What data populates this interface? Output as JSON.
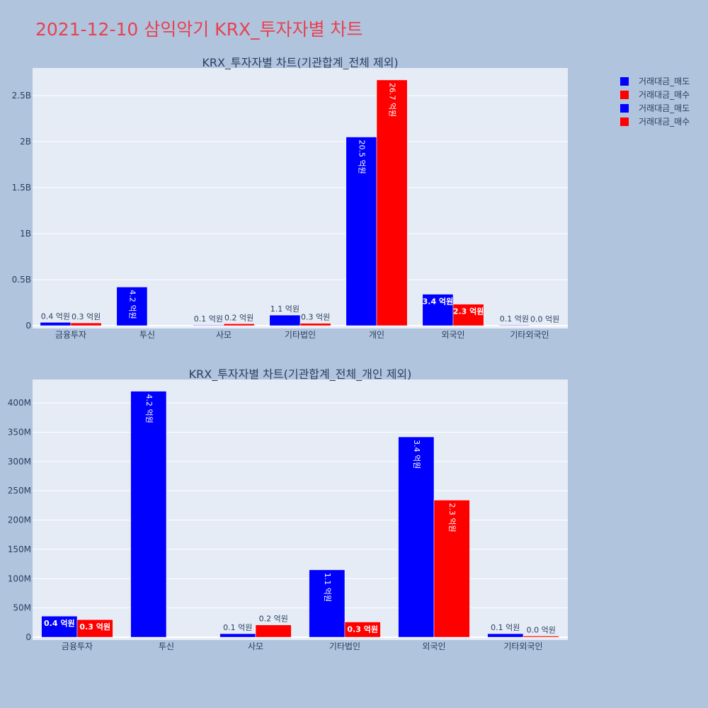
{
  "page_title": "2021-12-10 삼익악기 KRX_투자자별 차트",
  "colors": {
    "sell": "#0000ff",
    "buy": "#ff0000",
    "plot_bg": "#e5ecf6",
    "page_bg": "#b0c4de",
    "title": "#e8414f"
  },
  "legend": [
    {
      "label": "거래대금_매도",
      "color": "#0000ff"
    },
    {
      "label": "거래대금_매수",
      "color": "#ff0000"
    },
    {
      "label": "거래대금_매도",
      "color": "#0000ff"
    },
    {
      "label": "거래대금_매수",
      "color": "#ff0000"
    }
  ],
  "chart_data": [
    {
      "type": "bar",
      "title": "KRX_투자자별 차트(기관합계_전체 제외)",
      "categories": [
        "금융투자",
        "투신",
        "사모",
        "기타법인",
        "개인",
        "외국인",
        "기타외국인"
      ],
      "series": [
        {
          "name": "거래대금_매도",
          "color": "#0000ff",
          "values": [
            36000000,
            420000000,
            6000000,
            115000000,
            2050000000,
            342000000,
            6000000
          ],
          "labels": [
            "0.4 억원",
            "4.2 억원",
            "0.1 억원",
            "1.1 억원",
            "20.5 억원",
            "3.4 억원",
            "0.1 억원"
          ]
        },
        {
          "name": "거래대금_매수",
          "color": "#ff0000",
          "values": [
            30000000,
            0,
            21000000,
            26000000,
            2670000000,
            234000000,
            2000000
          ],
          "labels": [
            "0.3 억원",
            "",
            "0.2 억원",
            "0.3 억원",
            "26.7 억원",
            "2.3 억원",
            "0.0 억원"
          ]
        }
      ],
      "ylim": [
        0,
        2800000000
      ],
      "yticks": [
        0,
        500000000,
        1000000000,
        1500000000,
        2000000000,
        2500000000
      ],
      "ytick_labels": [
        "0",
        "0.5B",
        "1B",
        "1.5B",
        "2B",
        "2.5B"
      ],
      "grid": true
    },
    {
      "type": "bar",
      "title": "KRX_투자자별 차트(기관합계_전체_개인 제외)",
      "categories": [
        "금융투자",
        "투신",
        "사모",
        "기타법인",
        "외국인",
        "기타외국인"
      ],
      "series": [
        {
          "name": "거래대금_매도",
          "color": "#0000ff",
          "values": [
            36000000,
            420000000,
            6000000,
            115000000,
            342000000,
            6000000
          ],
          "labels": [
            "0.4 억원",
            "4.2 억원",
            "0.1 억원",
            "1.1 억원",
            "3.4 억원",
            "0.1 억원"
          ]
        },
        {
          "name": "거래대금_매수",
          "color": "#ff0000",
          "values": [
            30000000,
            0,
            21000000,
            26000000,
            234000000,
            2000000
          ],
          "labels": [
            "0.3 억원",
            "",
            "0.2 억원",
            "0.3 억원",
            "2.3 억원",
            "0.0 억원"
          ]
        }
      ],
      "ylim": [
        0,
        440000000
      ],
      "yticks": [
        0,
        50000000,
        100000000,
        150000000,
        200000000,
        250000000,
        300000000,
        350000000,
        400000000
      ],
      "ytick_labels": [
        "0",
        "50M",
        "100M",
        "150M",
        "200M",
        "250M",
        "300M",
        "350M",
        "400M"
      ],
      "grid": true
    }
  ]
}
